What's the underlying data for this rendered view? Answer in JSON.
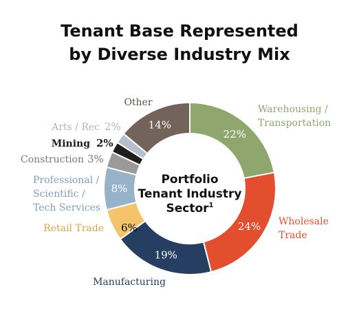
{
  "title_line1": "Tenant Base Represented",
  "title_line2": "by Diverse Industry Mix",
  "chart_data": {
    "type": "pie",
    "center_label_lines": [
      "Portfolio",
      "Tenant Industry",
      "Sector"
    ],
    "center_label_superscript": "1",
    "categories": [
      {
        "name": "Warehousing / Transportation",
        "value_label": "22%",
        "value": 22,
        "color": "#8fa76d"
      },
      {
        "name": "Wholesale Trade",
        "value_label": "24%",
        "value": 24,
        "color": "#e34f2e"
      },
      {
        "name": "Manufacturing",
        "value_label": "19%",
        "value": 19,
        "color": "#263e61"
      },
      {
        "name": "Retail Trade",
        "value_label": "6%",
        "value": 6,
        "color": "#f4c46b"
      },
      {
        "name": "Professional / Scientific / Tech Services",
        "value_label": "8%",
        "value": 8,
        "color": "#98b3c9"
      },
      {
        "name": "Construction",
        "value_label": "3%",
        "value": 3,
        "color": "#9a9a9a"
      },
      {
        "name": "Mining",
        "value_label": "2%",
        "value": 2,
        "color": "#1e1e1e"
      },
      {
        "name": "Arts / Rec",
        "value_label": "2%",
        "value": 2,
        "color": "#b4c1cc"
      },
      {
        "name": "Other",
        "value_label": "14%",
        "value": 14,
        "color": "#73635a"
      }
    ]
  }
}
